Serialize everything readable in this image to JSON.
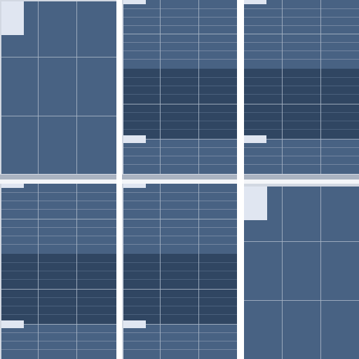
{
  "colors": {
    "panel": "#486283",
    "panel_dark": "#304662",
    "grid_line": "#a9b6c7",
    "swatch": "#e0e6f1",
    "background": "#d2d8e2"
  },
  "panels": [
    {
      "id": "p1",
      "style": "large-grid",
      "swatch_position": "top-left"
    },
    {
      "id": "p2",
      "style": "fine-grid-with-dark-band",
      "swatch_position": "top-left-and-bottom-left"
    },
    {
      "id": "p3",
      "style": "fine-grid-with-dark-band",
      "swatch_position": "top-left-and-bottom-left"
    },
    {
      "id": "p4",
      "style": "fine-grid-with-dark-band",
      "swatch_position": "top-left-and-bottom-left"
    },
    {
      "id": "p5",
      "style": "fine-grid-with-dark-band",
      "swatch_position": "top-left-and-bottom-left"
    },
    {
      "id": "p6",
      "style": "large-grid",
      "swatch_position": "top-left"
    }
  ]
}
